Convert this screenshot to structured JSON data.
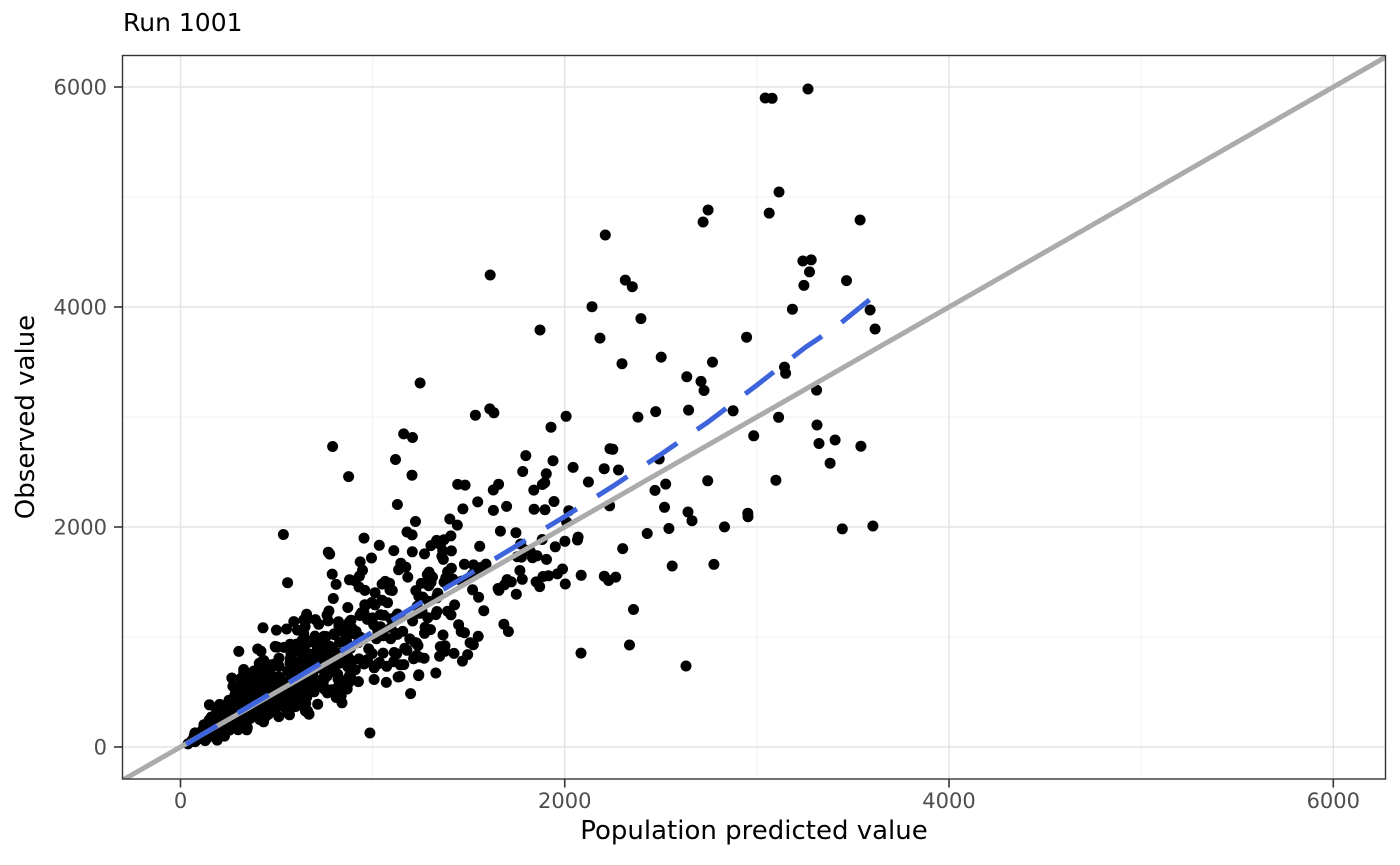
{
  "title": "Run 1001",
  "chart_data": {
    "type": "scatter",
    "title": "Run 1001",
    "xlabel": "Population predicted value",
    "ylabel": "Observed value",
    "xlim": [
      -305,
      6280
    ],
    "ylim": [
      -290,
      6290
    ],
    "x_ticks": {
      "major": [
        0,
        2000,
        4000,
        6000
      ],
      "minor": [
        1000,
        3000,
        5000
      ]
    },
    "y_ticks": {
      "major": [
        0,
        2000,
        4000,
        6000
      ],
      "minor": [
        1000,
        3000,
        5000
      ]
    },
    "grid": "major+minor",
    "legend": "none",
    "colors": {
      "point": "#000000",
      "identity_line": "#ABABAB",
      "trend_line": "#3E64DC",
      "grid_major": "#E3E3E3",
      "grid_minor": "#F0F0F0",
      "axis_text": "#4D4D4D",
      "panel_border": "#333333",
      "background": "#FFFFFF"
    },
    "identity_line": {
      "slope": 1,
      "intercept": 0,
      "width": 5
    },
    "trend_line": {
      "style": "dashed",
      "width": 5,
      "dash": [
        36,
        24
      ],
      "points": [
        [
          30,
          25
        ],
        [
          250,
          258
        ],
        [
          500,
          518
        ],
        [
          750,
          782
        ],
        [
          1000,
          1045
        ],
        [
          1250,
          1312
        ],
        [
          1500,
          1568
        ],
        [
          1750,
          1830
        ],
        [
          2000,
          2095
        ],
        [
          2250,
          2370
        ],
        [
          2500,
          2660
        ],
        [
          2750,
          2960
        ],
        [
          3000,
          3290
        ],
        [
          3250,
          3630
        ],
        [
          3420,
          3830
        ],
        [
          3600,
          4085
        ]
      ]
    },
    "points": {
      "radius": 5.5,
      "count": 950,
      "seed": 1001,
      "x_distribution": "lognormal(meanlog=6.4, sdlog=0.9) clipped to [25, 3600]",
      "y_model": "y = x * lognormal(meanlog=0.035, sdlog=0.34) clipped to [8, 4500]",
      "outliers": [
        [
          3043,
          5900
        ],
        [
          3079,
          5897
        ],
        [
          3266,
          5982
        ],
        [
          3115,
          5045
        ],
        [
          3064,
          4854
        ],
        [
          2746,
          4882
        ],
        [
          2720,
          4773
        ],
        [
          3537,
          4791
        ],
        [
          2211,
          4655
        ],
        [
          1612,
          4291
        ],
        [
          2315,
          4245
        ],
        [
          1871,
          3791
        ],
        [
          1247,
          3309
        ],
        [
          3589,
          3973
        ],
        [
          3615,
          3800
        ],
        [
          3313,
          2927
        ],
        [
          3407,
          2791
        ],
        [
          3604,
          2009
        ],
        [
          2631,
          736
        ],
        [
          986,
          127
        ]
      ]
    }
  }
}
